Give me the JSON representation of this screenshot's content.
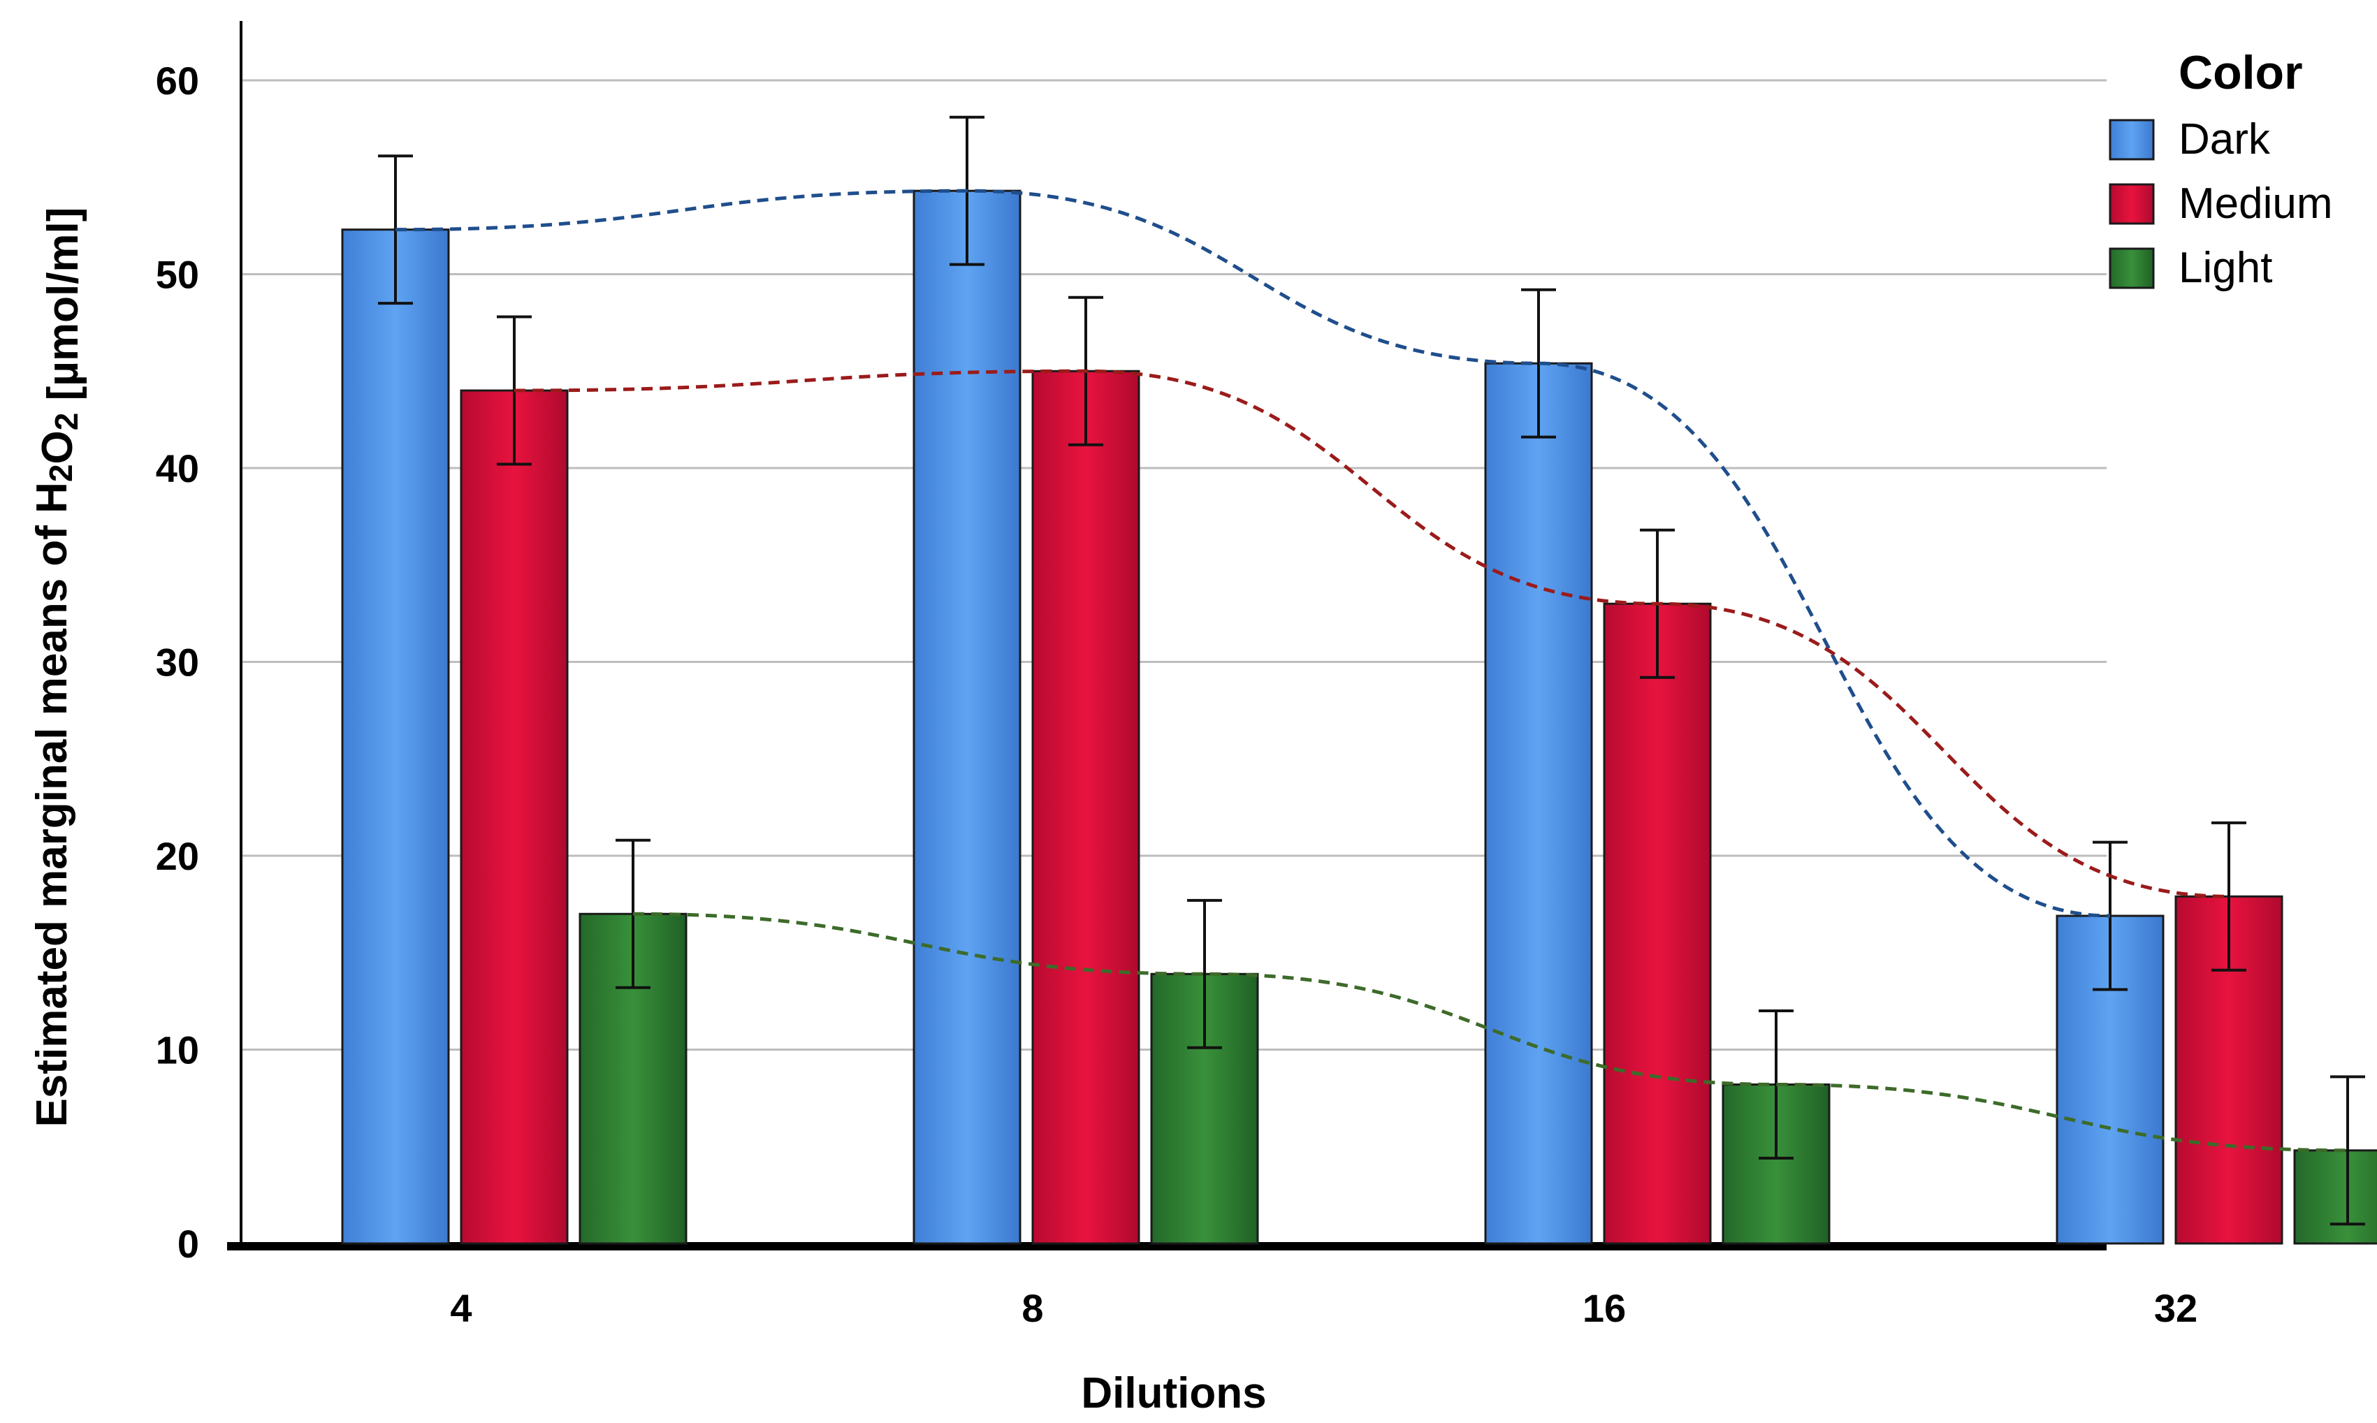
{
  "chart_data": {
    "type": "bar",
    "title": "",
    "xlabel": "Dilutions",
    "ylabel": "Estimated marginal means of H2O2 [µmol/ml]",
    "ylim": [
      0,
      60
    ],
    "yticks": [
      "0",
      "10",
      "20",
      "30",
      "40",
      "50",
      "60"
    ],
    "categories": [
      "4",
      "8",
      "16",
      "32"
    ],
    "grid": true,
    "legend_title": "Color",
    "legend_position": "top-right",
    "series": [
      {
        "name": "Dark",
        "color": "#4f92e6",
        "values": [
          52.3,
          54.3,
          45.4,
          16.9
        ],
        "errors": [
          3.8,
          3.8,
          3.8,
          3.8
        ],
        "trend_color": "#1f4e8c"
      },
      {
        "name": "Medium",
        "color": "#d40e3b",
        "values": [
          44.0,
          45.0,
          33.0,
          17.9
        ],
        "errors": [
          3.8,
          3.8,
          3.8,
          3.8
        ],
        "trend_color": "#9b1b1b"
      },
      {
        "name": "Light",
        "color": "#2f7f2f",
        "values": [
          17.0,
          13.9,
          8.2,
          4.8
        ],
        "errors": [
          3.8,
          3.8,
          3.8,
          3.8
        ],
        "trend_color": "#3d6b2a"
      }
    ]
  }
}
